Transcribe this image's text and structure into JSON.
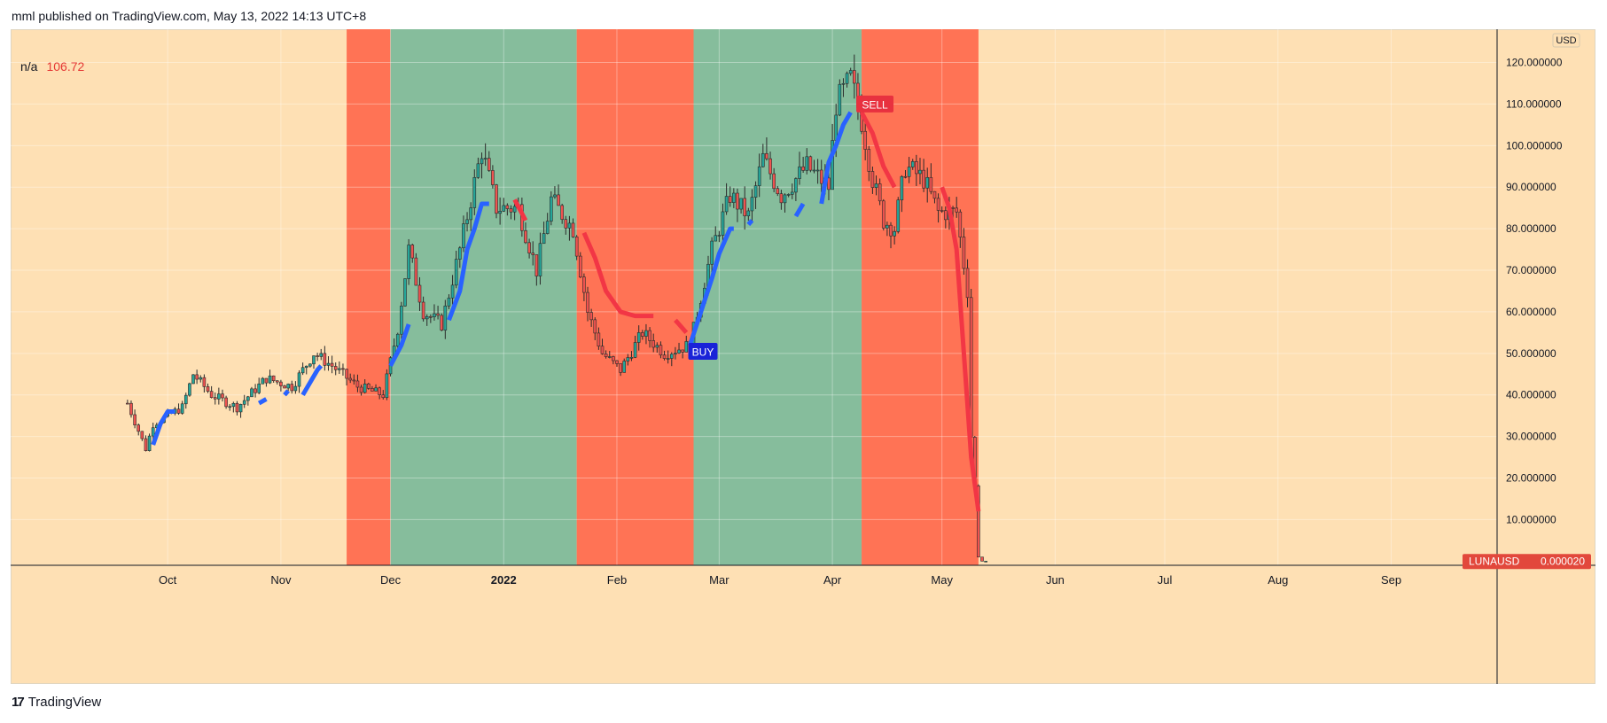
{
  "header": {
    "publisher": "mml published on TradingView.com, May 13, 2022 14:13 UTC+8"
  },
  "legend": {
    "na": "n/a",
    "value": "106.72"
  },
  "brand": {
    "name": "TradingView"
  },
  "colors": {
    "background": "#fee0b4",
    "red_zone": "#ff7355",
    "green_zone": "#86bd9c",
    "candle_up": "#26a69a",
    "candle_down": "#ef5350",
    "buy_line": "#2962ff",
    "sell_line": "#f23645",
    "buy_badge": "#1a23d8",
    "sell_badge": "#e8313f",
    "price_badge": "#e2483c"
  },
  "chart_data": {
    "type": "candlestick",
    "symbol": "LUNAUSD",
    "currency": "USD",
    "last_price_label": "0.000020",
    "y_axis": {
      "ticks": [
        10,
        20,
        30,
        40,
        50,
        60,
        70,
        80,
        90,
        100,
        110,
        120
      ],
      "tick_labels": [
        "10.000000",
        "20.000000",
        "30.000000",
        "40.000000",
        "50.000000",
        "60.000000",
        "70.000000",
        "80.000000",
        "90.000000",
        "100.000000",
        "110.000000",
        "120.000000"
      ],
      "range": [
        -1,
        128
      ]
    },
    "x_axis": {
      "range": [
        "2021-08-19",
        "2022-09-30"
      ],
      "ticks": [
        {
          "date": "2021-10-01",
          "label": "Oct",
          "bold": false
        },
        {
          "date": "2021-11-01",
          "label": "Nov",
          "bold": false
        },
        {
          "date": "2021-12-01",
          "label": "Dec",
          "bold": false
        },
        {
          "date": "2022-01-01",
          "label": "2022",
          "bold": true
        },
        {
          "date": "2022-02-01",
          "label": "Feb",
          "bold": false
        },
        {
          "date": "2022-03-01",
          "label": "Mar",
          "bold": false
        },
        {
          "date": "2022-04-01",
          "label": "Apr",
          "bold": false
        },
        {
          "date": "2022-05-01",
          "label": "May",
          "bold": false
        },
        {
          "date": "2022-06-01",
          "label": "Jun",
          "bold": false
        },
        {
          "date": "2022-07-01",
          "label": "Jul",
          "bold": false
        },
        {
          "date": "2022-08-01",
          "label": "Aug",
          "bold": false
        },
        {
          "date": "2022-09-01",
          "label": "Sep",
          "bold": false
        }
      ]
    },
    "zones": [
      {
        "start": "2021-11-19",
        "end": "2021-12-01",
        "type": "red"
      },
      {
        "start": "2021-12-01",
        "end": "2022-01-21",
        "type": "green"
      },
      {
        "start": "2022-01-21",
        "end": "2022-02-22",
        "type": "red"
      },
      {
        "start": "2022-02-22",
        "end": "2022-04-09",
        "type": "green"
      },
      {
        "start": "2022-04-09",
        "end": "2022-05-11",
        "type": "red"
      }
    ],
    "close_anchors": [
      {
        "date": "2021-09-20",
        "value": 38
      },
      {
        "date": "2021-09-25",
        "value": 27
      },
      {
        "date": "2021-09-27",
        "value": 33
      },
      {
        "date": "2021-10-05",
        "value": 37
      },
      {
        "date": "2021-10-08",
        "value": 45
      },
      {
        "date": "2021-10-13",
        "value": 40
      },
      {
        "date": "2021-10-20",
        "value": 37
      },
      {
        "date": "2021-10-28",
        "value": 44
      },
      {
        "date": "2021-11-04",
        "value": 42
      },
      {
        "date": "2021-11-10",
        "value": 50
      },
      {
        "date": "2021-11-15",
        "value": 47
      },
      {
        "date": "2021-11-22",
        "value": 42
      },
      {
        "date": "2021-11-29",
        "value": 40
      },
      {
        "date": "2021-12-03",
        "value": 56
      },
      {
        "date": "2021-12-06",
        "value": 75
      },
      {
        "date": "2021-12-10",
        "value": 60
      },
      {
        "date": "2021-12-15",
        "value": 57
      },
      {
        "date": "2021-12-20",
        "value": 75
      },
      {
        "date": "2021-12-26",
        "value": 99
      },
      {
        "date": "2021-12-30",
        "value": 85
      },
      {
        "date": "2022-01-05",
        "value": 85
      },
      {
        "date": "2022-01-10",
        "value": 70
      },
      {
        "date": "2022-01-14",
        "value": 87
      },
      {
        "date": "2022-01-20",
        "value": 80
      },
      {
        "date": "2022-01-24",
        "value": 60
      },
      {
        "date": "2022-01-28",
        "value": 50
      },
      {
        "date": "2022-02-02",
        "value": 46
      },
      {
        "date": "2022-02-08",
        "value": 55
      },
      {
        "date": "2022-02-14",
        "value": 50
      },
      {
        "date": "2022-02-21",
        "value": 52
      },
      {
        "date": "2022-02-27",
        "value": 75
      },
      {
        "date": "2022-03-04",
        "value": 88
      },
      {
        "date": "2022-03-09",
        "value": 83
      },
      {
        "date": "2022-03-13",
        "value": 97
      },
      {
        "date": "2022-03-18",
        "value": 88
      },
      {
        "date": "2022-03-25",
        "value": 95
      },
      {
        "date": "2022-03-31",
        "value": 90
      },
      {
        "date": "2022-04-02",
        "value": 110
      },
      {
        "date": "2022-04-06",
        "value": 116
      },
      {
        "date": "2022-04-09",
        "value": 106
      },
      {
        "date": "2022-04-12",
        "value": 92
      },
      {
        "date": "2022-04-15",
        "value": 82
      },
      {
        "date": "2022-04-18",
        "value": 80
      },
      {
        "date": "2022-04-21",
        "value": 95
      },
      {
        "date": "2022-04-26",
        "value": 92
      },
      {
        "date": "2022-04-30",
        "value": 84
      },
      {
        "date": "2022-05-05",
        "value": 84
      },
      {
        "date": "2022-05-08",
        "value": 65
      },
      {
        "date": "2022-05-09",
        "value": 30
      },
      {
        "date": "2022-05-10",
        "value": 18
      },
      {
        "date": "2022-05-11",
        "value": 1
      },
      {
        "date": "2022-05-12",
        "value": 2e-05
      },
      {
        "date": "2022-05-13",
        "value": 2e-05
      }
    ],
    "buy_trail": [
      [
        {
          "date": "2021-09-27",
          "value": 28
        },
        {
          "date": "2021-09-29",
          "value": 33
        },
        {
          "date": "2021-10-01",
          "value": 36
        },
        {
          "date": "2021-10-03",
          "value": 36
        }
      ],
      [
        {
          "date": "2021-10-26",
          "value": 38
        },
        {
          "date": "2021-10-28",
          "value": 39
        }
      ],
      [
        {
          "date": "2021-11-02",
          "value": 40
        },
        {
          "date": "2021-11-03",
          "value": 41
        }
      ],
      [
        {
          "date": "2021-11-07",
          "value": 40
        },
        {
          "date": "2021-11-09",
          "value": 43
        },
        {
          "date": "2021-11-11",
          "value": 46
        },
        {
          "date": "2021-11-12",
          "value": 47
        }
      ],
      [
        {
          "date": "2021-12-01",
          "value": 47
        },
        {
          "date": "2021-12-04",
          "value": 52
        },
        {
          "date": "2021-12-06",
          "value": 57
        }
      ],
      [
        {
          "date": "2021-12-17",
          "value": 58
        },
        {
          "date": "2021-12-20",
          "value": 65
        },
        {
          "date": "2021-12-22",
          "value": 75
        },
        {
          "date": "2021-12-24",
          "value": 80
        },
        {
          "date": "2021-12-26",
          "value": 86
        },
        {
          "date": "2021-12-28",
          "value": 86
        }
      ],
      [
        {
          "date": "2022-02-21",
          "value": 52
        },
        {
          "date": "2022-02-24",
          "value": 60
        },
        {
          "date": "2022-02-27",
          "value": 68
        },
        {
          "date": "2022-03-01",
          "value": 74
        },
        {
          "date": "2022-03-04",
          "value": 80
        },
        {
          "date": "2022-03-05",
          "value": 80
        }
      ],
      [
        {
          "date": "2022-03-09",
          "value": 81
        },
        {
          "date": "2022-03-10",
          "value": 82
        }
      ],
      [
        {
          "date": "2022-03-22",
          "value": 83
        },
        {
          "date": "2022-03-24",
          "value": 86
        }
      ],
      [
        {
          "date": "2022-03-29",
          "value": 86
        },
        {
          "date": "2022-03-31",
          "value": 96
        },
        {
          "date": "2022-04-02",
          "value": 100
        },
        {
          "date": "2022-04-04",
          "value": 105
        },
        {
          "date": "2022-04-06",
          "value": 108
        }
      ]
    ],
    "sell_trail": [
      [
        {
          "date": "2022-01-04",
          "value": 87
        },
        {
          "date": "2022-01-07",
          "value": 82
        }
      ],
      [
        {
          "date": "2022-01-23",
          "value": 79
        },
        {
          "date": "2022-01-26",
          "value": 73
        },
        {
          "date": "2022-01-29",
          "value": 65
        },
        {
          "date": "2022-02-02",
          "value": 60
        },
        {
          "date": "2022-02-06",
          "value": 59
        },
        {
          "date": "2022-02-11",
          "value": 59
        }
      ],
      [
        {
          "date": "2022-02-17",
          "value": 58
        },
        {
          "date": "2022-02-20",
          "value": 55
        }
      ],
      [
        {
          "date": "2022-04-09",
          "value": 108
        },
        {
          "date": "2022-04-12",
          "value": 103
        },
        {
          "date": "2022-04-15",
          "value": 95
        },
        {
          "date": "2022-04-18",
          "value": 90
        }
      ],
      [
        {
          "date": "2022-05-01",
          "value": 90
        },
        {
          "date": "2022-05-03",
          "value": 85
        },
        {
          "date": "2022-05-05",
          "value": 75
        },
        {
          "date": "2022-05-07",
          "value": 50
        },
        {
          "date": "2022-05-09",
          "value": 25
        },
        {
          "date": "2022-05-11",
          "value": 12
        }
      ]
    ],
    "signals": [
      {
        "label": "BUY",
        "date": "2022-02-22",
        "value": 50.5,
        "side": "buy"
      },
      {
        "label": "SELL",
        "date": "2022-04-09",
        "value": 110,
        "side": "sell"
      }
    ]
  }
}
